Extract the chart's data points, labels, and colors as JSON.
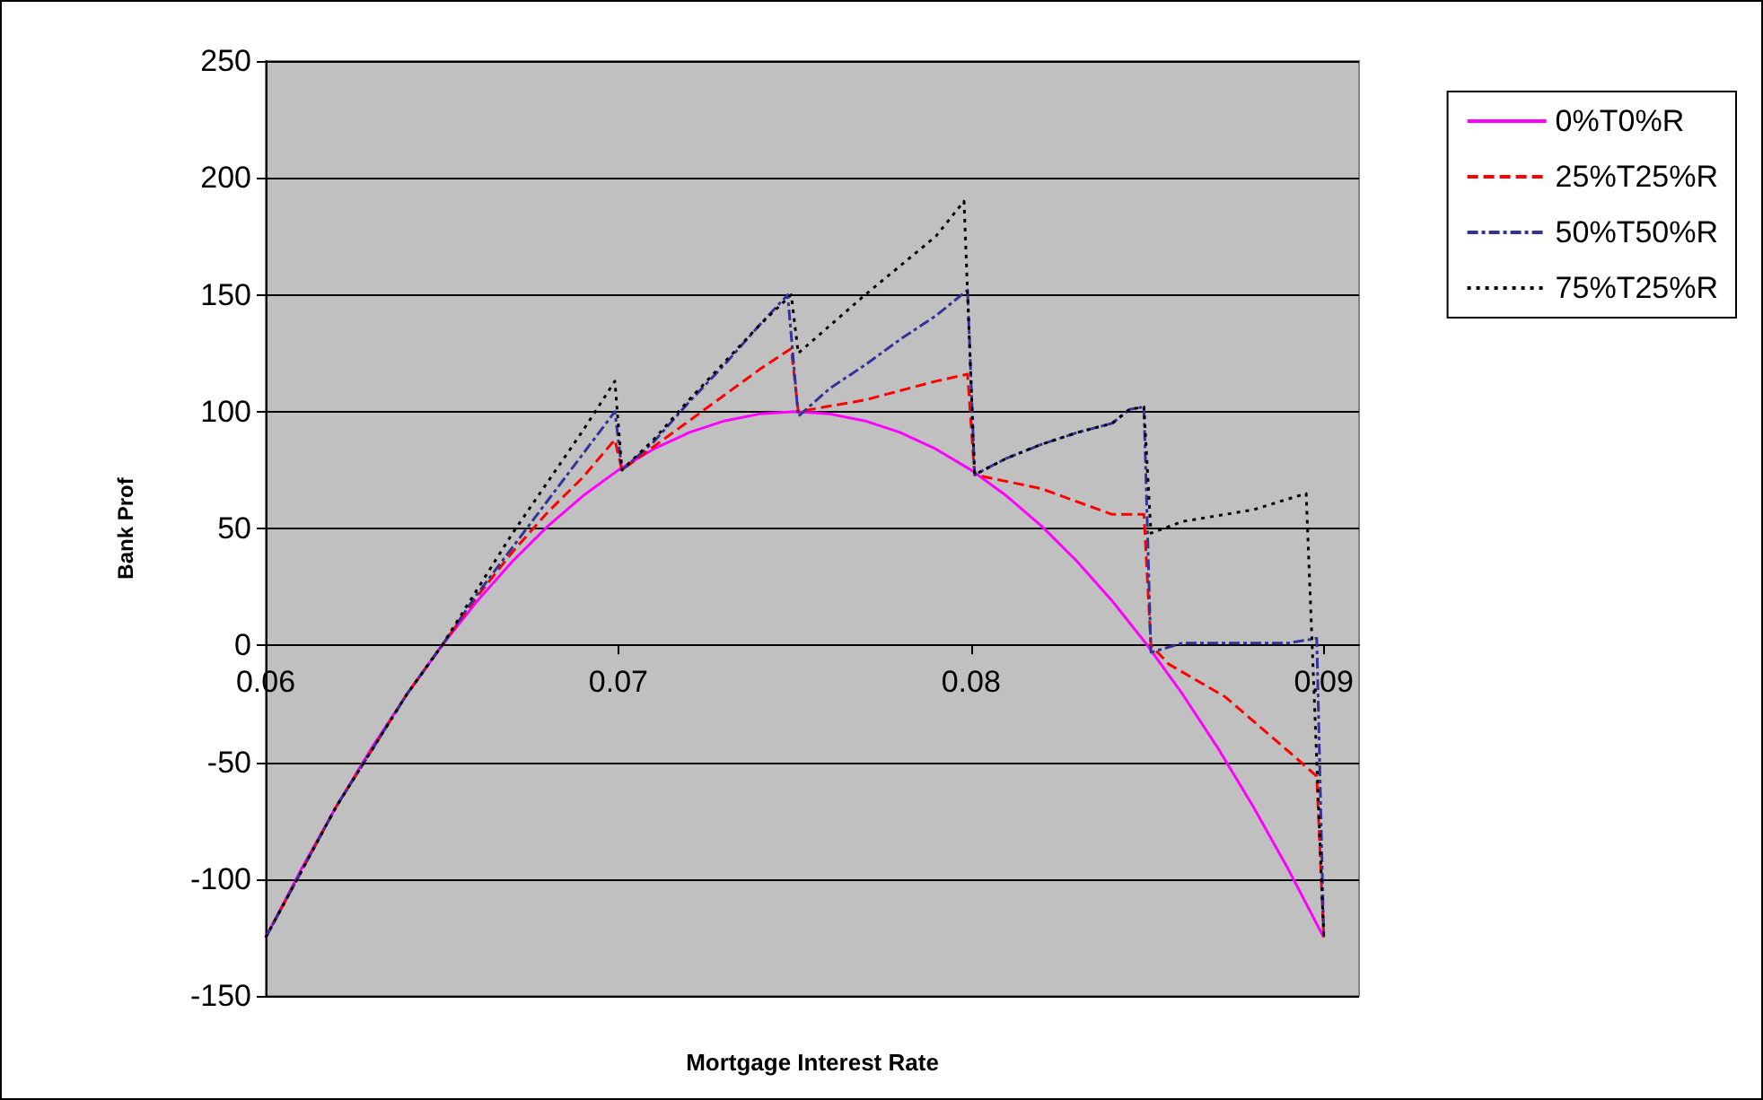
{
  "chart_data": {
    "type": "line",
    "xlabel": "Mortgage Interest Rate",
    "ylabel": "Bank Prof",
    "xlim": [
      0.06,
      0.091
    ],
    "xticks": [
      0.06,
      0.07,
      0.08,
      0.09
    ],
    "ylim": [
      -150,
      250
    ],
    "yticks": [
      -150,
      -100,
      -50,
      0,
      50,
      100,
      150,
      200,
      250
    ],
    "grid": "y",
    "legend": "top right",
    "marker": "none",
    "series": [
      {
        "name": "0%T0%R",
        "color": "#ff00ff",
        "line_style": "solid",
        "x": [
          0.06,
          0.061,
          0.062,
          0.063,
          0.064,
          0.065,
          0.066,
          0.067,
          0.068,
          0.069,
          0.07,
          0.071,
          0.072,
          0.073,
          0.074,
          0.075,
          0.076,
          0.077,
          0.078,
          0.079,
          0.08,
          0.081,
          0.082,
          0.083,
          0.084,
          0.085,
          0.086,
          0.087,
          0.088,
          0.089,
          0.09
        ],
        "values": [
          -125,
          -96,
          -69,
          -44,
          -21,
          0,
          19,
          36,
          51,
          64,
          75,
          84,
          91,
          96,
          99,
          100,
          99,
          96,
          91,
          84,
          75,
          64,
          51,
          36,
          19,
          0,
          -21,
          -44,
          -69,
          -96,
          -125
        ]
      },
      {
        "name": "25%T25%R",
        "color": "#ff0000",
        "line_style": "dashed",
        "x": [
          0.06,
          0.062,
          0.064,
          0.065,
          0.066,
          0.067,
          0.068,
          0.069,
          0.0699,
          0.0701,
          0.071,
          0.072,
          0.073,
          0.074,
          0.0749,
          0.0751,
          0.077,
          0.079,
          0.0799,
          0.0801,
          0.082,
          0.084,
          0.0849,
          0.0851,
          0.0856,
          0.0872,
          0.0892,
          0.0898,
          0.09
        ],
        "values": [
          -125,
          -69,
          -21,
          0,
          21,
          40,
          57,
          72,
          88,
          75,
          85,
          96,
          107,
          118,
          127,
          100,
          105,
          113,
          116,
          73,
          67,
          56,
          56,
          0,
          -8,
          -22,
          -48,
          -56,
          -125
        ]
      },
      {
        "name": "50%T50%R",
        "color": "#333399",
        "line_style": "dashdot",
        "x": [
          0.06,
          0.062,
          0.064,
          0.065,
          0.066,
          0.067,
          0.068,
          0.069,
          0.0699,
          0.0701,
          0.071,
          0.072,
          0.073,
          0.074,
          0.0748,
          0.0751,
          0.076,
          0.077,
          0.078,
          0.079,
          0.0799,
          0.0801,
          0.081,
          0.082,
          0.083,
          0.084,
          0.0845,
          0.0849,
          0.0851,
          0.086,
          0.089,
          0.0898,
          0.09
        ],
        "values": [
          -125,
          -69,
          -21,
          0,
          22,
          42,
          62,
          82,
          100,
          75,
          87,
          104,
          120,
          137,
          150,
          98,
          110,
          120,
          131,
          141,
          152,
          73,
          80,
          86,
          91,
          95,
          101,
          102,
          -3,
          1,
          1,
          3,
          -125
        ]
      },
      {
        "name": "75%T25%R",
        "color": "#000000",
        "line_style": "dotted",
        "x": [
          0.06,
          0.062,
          0.064,
          0.065,
          0.066,
          0.067,
          0.068,
          0.069,
          0.0699,
          0.0701,
          0.071,
          0.072,
          0.073,
          0.074,
          0.0749,
          0.0751,
          0.077,
          0.079,
          0.0798,
          0.0801,
          0.081,
          0.082,
          0.083,
          0.084,
          0.0845,
          0.0849,
          0.0851,
          0.086,
          0.088,
          0.0895,
          0.09
        ],
        "values": [
          -125,
          -69,
          -21,
          0,
          24,
          48,
          70,
          92,
          113,
          75,
          88,
          105,
          121,
          137,
          150,
          125,
          150,
          175,
          190,
          73,
          80,
          86,
          91,
          95,
          101,
          102,
          48,
          53,
          58,
          65,
          -125
        ]
      }
    ]
  }
}
